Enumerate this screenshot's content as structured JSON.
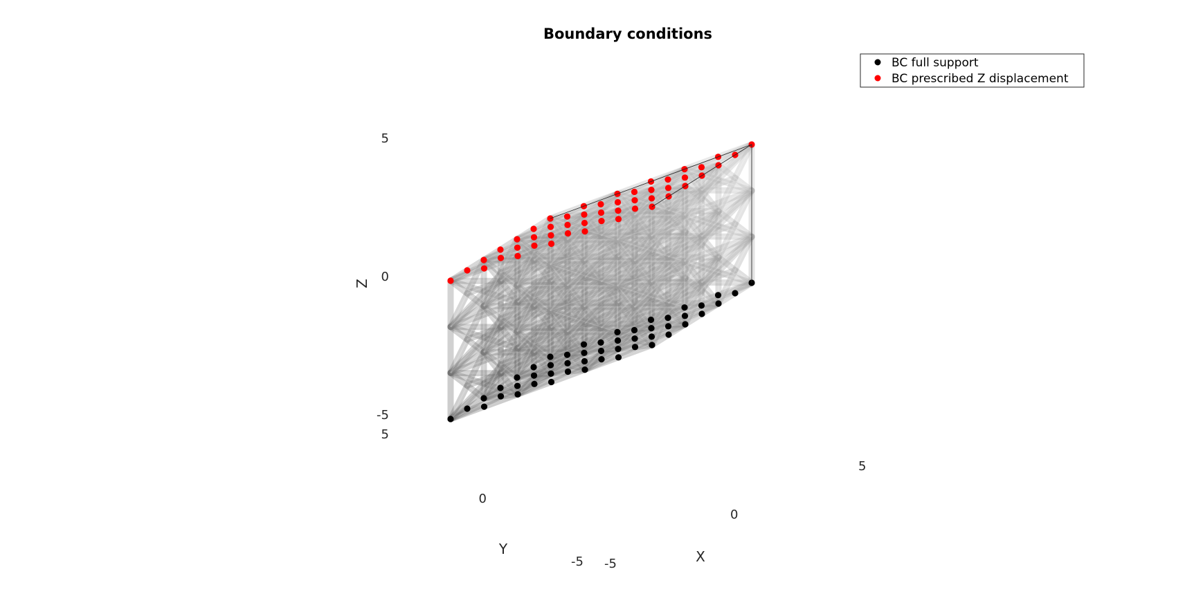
{
  "chart_data": {
    "type": "scatter3d",
    "title": "Boundary conditions",
    "xlabel": "X",
    "ylabel": "Y",
    "zlabel": "Z",
    "xlim": [
      -5,
      5
    ],
    "ylim": [
      -5,
      5
    ],
    "zlim": [
      -5,
      5
    ],
    "xticks": [
      "-5",
      "0",
      "5"
    ],
    "yticks": [
      "-5",
      "0",
      "5"
    ],
    "zticks": [
      "-5",
      "0",
      "5"
    ],
    "view": "isometric",
    "lattice": "3x3x3 cubic cells with face- and body-diagonal struts, rendered as translucent gray cylinders",
    "strut_color": "#8c8c8c",
    "legend": {
      "location": "top-right",
      "entries": [
        {
          "label": "BC full support",
          "color": "#000000"
        },
        {
          "label": "BC prescribed Z displacement",
          "color": "#ff0000"
        }
      ]
    },
    "series": [
      {
        "name": "BC full support",
        "color": "#000000",
        "z": -5,
        "x": [
          -5,
          -3.333,
          -1.667,
          0,
          1.667,
          3.333,
          5
        ],
        "y": [
          -5,
          -3.333,
          -1.667,
          0,
          1.667,
          3.333,
          5
        ],
        "points": "all x,y grid nodes on face z = -5"
      },
      {
        "name": "BC prescribed Z displacement",
        "color": "#ff0000",
        "z": 5,
        "x": [
          -5,
          -3.333,
          -1.667,
          0,
          1.667,
          3.333,
          5
        ],
        "y": [
          -5,
          -3.333,
          -1.667,
          0,
          1.667,
          3.333,
          5
        ],
        "points": "all x,y grid nodes on face z = 5"
      }
    ]
  }
}
